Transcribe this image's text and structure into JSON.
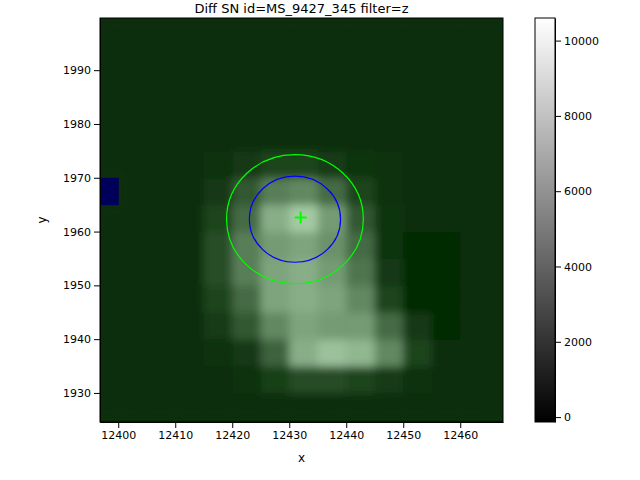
{
  "chart_data": {
    "type": "heatmap",
    "title": "Diff SN id=MS_9427_345 filter=z",
    "x_label": "x",
    "y_label": "y",
    "xlim": [
      12396.8,
      12467.5
    ],
    "ylim": [
      1924.6,
      1999.7
    ],
    "xticks": [
      12400,
      12410,
      12420,
      12430,
      12440,
      12450,
      12460
    ],
    "yticks": [
      1930,
      1940,
      1950,
      1960,
      1970,
      1980,
      1990
    ],
    "heatmap": {
      "x": [
        12395,
        12400,
        12405,
        12410,
        12415,
        12420,
        12425,
        12430,
        12435,
        12440,
        12445,
        12450,
        12455,
        12460,
        12465,
        12470
      ],
      "y": [
        1925,
        1930,
        1935,
        1940,
        1945,
        1950,
        1955,
        1960,
        1965,
        1970,
        1975,
        1980,
        1985,
        1990,
        1995,
        2000
      ],
      "values": [
        [
          300,
          300,
          300,
          300,
          300,
          300,
          300,
          300,
          300,
          300,
          300,
          300,
          300,
          300,
          300
        ],
        [
          300,
          300,
          300,
          300,
          300,
          400,
          1200,
          1800,
          1800,
          1500,
          1000,
          500,
          300,
          300,
          300
        ],
        [
          300,
          300,
          300,
          300,
          400,
          800,
          3000,
          7000,
          8000,
          7500,
          5000,
          1500,
          300,
          300,
          300
        ],
        [
          300,
          300,
          300,
          300,
          1000,
          2500,
          5000,
          6500,
          6000,
          6000,
          3500,
          800,
          200,
          300,
          300
        ],
        [
          300,
          300,
          300,
          300,
          1500,
          3500,
          6500,
          7000,
          6500,
          5000,
          1500,
          200,
          200,
          300,
          300
        ],
        [
          300,
          300,
          300,
          300,
          2000,
          4500,
          6500,
          7000,
          6000,
          4000,
          800,
          100,
          200,
          300,
          300
        ],
        [
          300,
          300,
          300,
          300,
          2000,
          4500,
          6000,
          6500,
          5500,
          3500,
          600,
          100,
          200,
          300,
          300
        ],
        [
          300,
          300,
          300,
          300,
          1500,
          3500,
          7000,
          8500,
          6000,
          2500,
          700,
          300,
          300,
          300,
          300
        ],
        [
          null,
          300,
          300,
          300,
          800,
          2500,
          4500,
          5000,
          3500,
          1500,
          500,
          300,
          300,
          300,
          300
        ],
        [
          300,
          300,
          300,
          300,
          400,
          800,
          1500,
          1500,
          1000,
          600,
          400,
          300,
          300,
          300,
          300
        ],
        [
          300,
          300,
          300,
          300,
          300,
          300,
          300,
          300,
          300,
          300,
          300,
          300,
          300,
          300,
          300
        ],
        [
          300,
          300,
          300,
          300,
          300,
          300,
          300,
          300,
          300,
          300,
          300,
          300,
          300,
          300,
          300
        ],
        [
          300,
          300,
          300,
          300,
          300,
          300,
          300,
          300,
          300,
          300,
          300,
          300,
          300,
          300,
          300
        ],
        [
          300,
          300,
          300,
          300,
          300,
          300,
          300,
          300,
          300,
          300,
          300,
          300,
          300,
          300,
          300
        ],
        [
          300,
          300,
          300,
          300,
          300,
          300,
          300,
          300,
          300,
          300,
          300,
          300,
          300,
          300,
          300
        ]
      ]
    },
    "colorbar": {
      "range": [
        -130,
        10600
      ],
      "ticks": [
        0,
        2000,
        4000,
        6000,
        8000,
        10000
      ]
    },
    "circles": [
      {
        "x": 12431,
        "y": 1962.3,
        "r": 12,
        "color": "#00ff00"
      },
      {
        "x": 12431,
        "y": 1962.3,
        "r": 8,
        "color": "#0000ff"
      }
    ],
    "points": [
      {
        "x": 12432,
        "y": 1962.6,
        "color": "#00ff00",
        "marker": "+"
      }
    ]
  }
}
